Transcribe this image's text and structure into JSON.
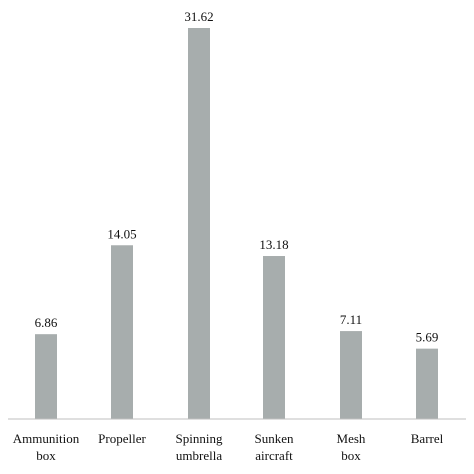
{
  "chart_data": {
    "type": "bar",
    "title": "",
    "xlabel": "",
    "ylabel": "",
    "categories": [
      [
        "Ammunition",
        "box"
      ],
      [
        "Propeller"
      ],
      [
        "Spinning",
        "umbrella"
      ],
      [
        "Sunken",
        "aircraft"
      ],
      [
        "Mesh",
        "box"
      ],
      [
        "Barrel"
      ]
    ],
    "values": [
      6.86,
      14.05,
      31.62,
      13.18,
      7.11,
      5.69
    ],
    "value_labels": [
      "6.86",
      "14.05",
      "31.62",
      "13.18",
      "7.11",
      "5.69"
    ],
    "ylim": [
      0,
      35
    ],
    "grid": false,
    "legend": "none",
    "bar_color": "#a7adad"
  }
}
